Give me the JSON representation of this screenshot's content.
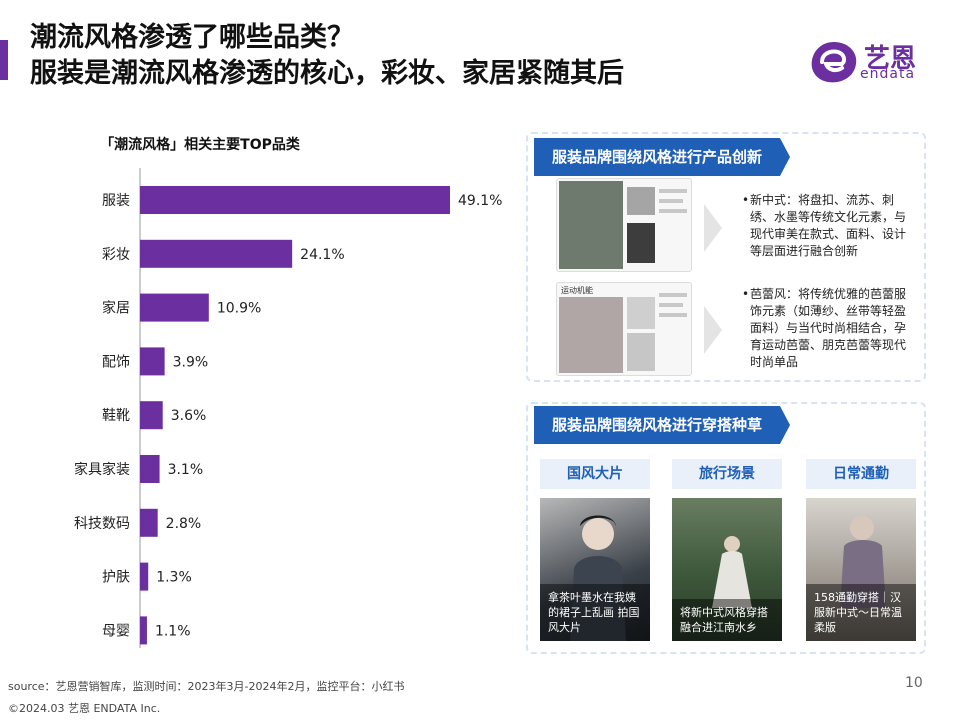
{
  "title": {
    "line1": "潮流风格渗透了哪些品类？",
    "line2": "服装是潮流风格渗透的核心，彩妆、家居紧随其后"
  },
  "logo": {
    "cn": "艺恩",
    "en": "endata",
    "color": "#6b2fa0"
  },
  "chart_data": {
    "type": "bar",
    "orientation": "horizontal",
    "title": "「潮流风格」相关主要TOP品类",
    "categories": [
      "服装",
      "彩妆",
      "家居",
      "配饰",
      "鞋靴",
      "家具家装",
      "科技数码",
      "护肤",
      "母婴"
    ],
    "values": [
      49.1,
      24.1,
      10.9,
      3.9,
      3.6,
      3.1,
      2.8,
      1.3,
      1.1
    ],
    "labels": [
      "49.1%",
      "24.1%",
      "10.9%",
      "3.9%",
      "3.6%",
      "3.1%",
      "2.8%",
      "1.3%",
      "1.1%"
    ],
    "unit": "%",
    "bar_color": "#6b2fa0",
    "grid": false
  },
  "panel1": {
    "header": "服装品牌围绕风格进行产品创新",
    "items": [
      {
        "bullet": "•",
        "text": "新中式：将盘扣、流苏、刺绣、水墨等传统文化元素，与现代审美在款式、面料、设计等层面进行融合创新"
      },
      {
        "bullet": "•",
        "text": "芭蕾风：将传统优雅的芭蕾服饰元素（如薄纱、丝带等轻盈面料）与当代时尚相结合，孕育运动芭蕾、朋克芭蕾等现代时尚单品"
      }
    ],
    "mock2_caption": "运动机能"
  },
  "panel2": {
    "header": "服装品牌围绕风格进行穿搭种草",
    "tabs": [
      "国风大片",
      "旅行场景",
      "日常通勤"
    ],
    "captions": [
      "拿茶叶墨水在我姨的裙子上乱画 拍国风大片",
      "将新中式风格穿搭融合进江南水乡",
      "158通勤穿搭｜汉服新中式～日常温柔版"
    ]
  },
  "footer": {
    "source": "source：艺恩营销智库，监测时间：2023年3月-2024年2月，监控平台：小红书",
    "copyright": "©2024.03 艺恩 ENDATA Inc.",
    "page": "10"
  }
}
